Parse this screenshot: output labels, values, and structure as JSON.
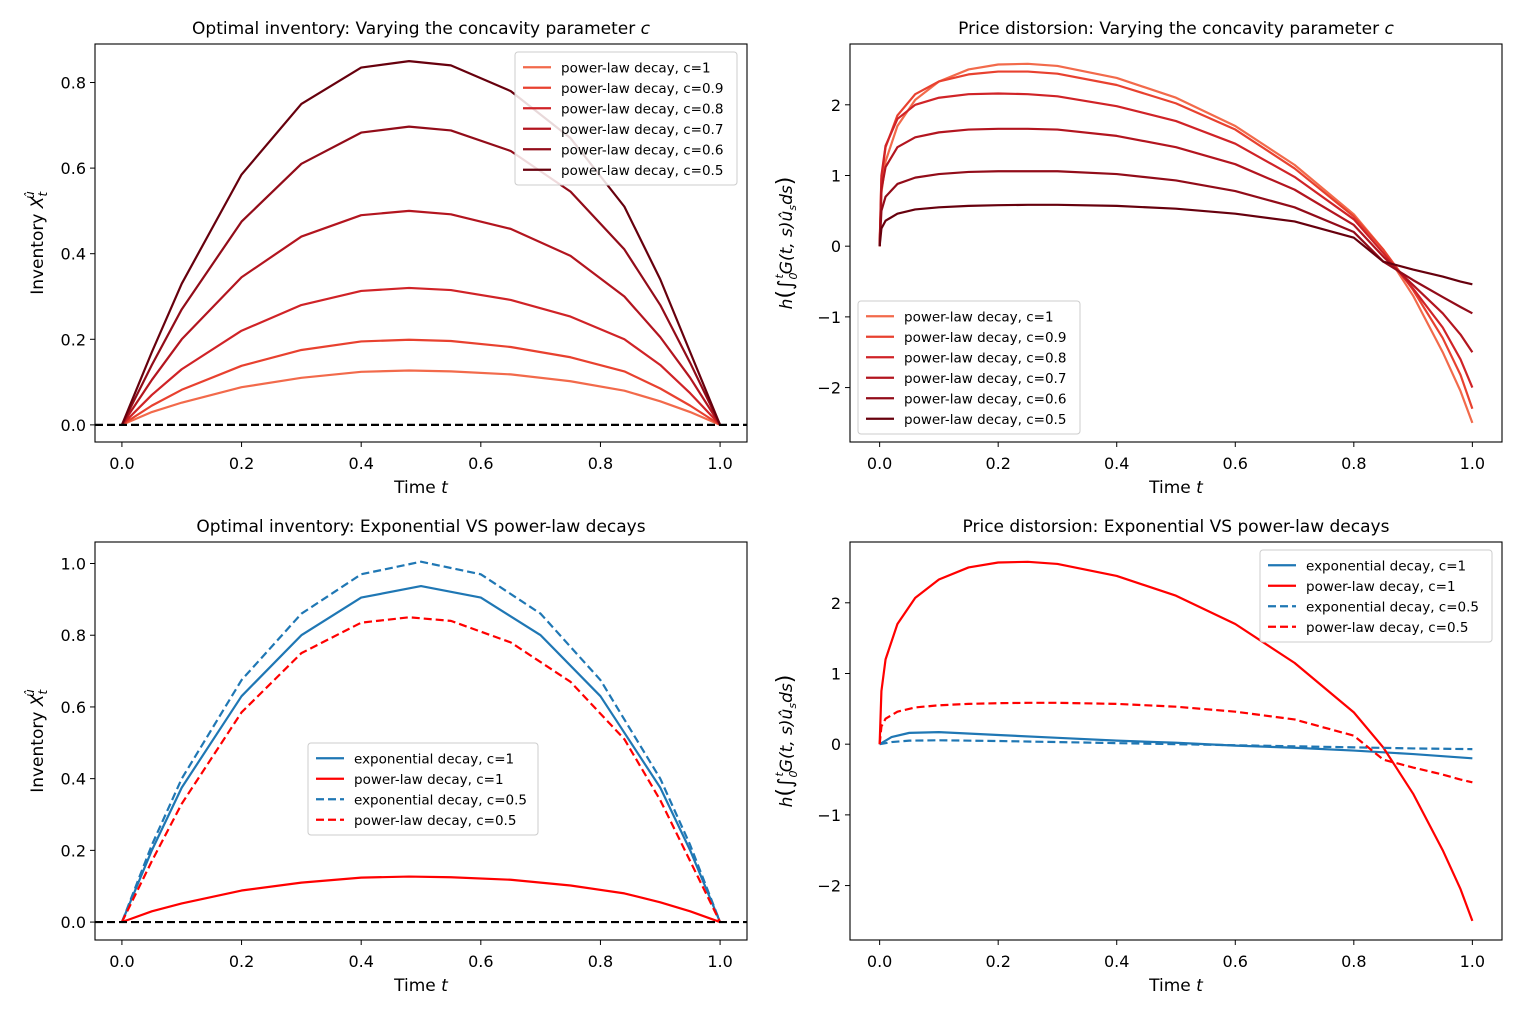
{
  "figure": {
    "background": "#ffffff"
  },
  "chart_data": [
    {
      "id": "tl",
      "type": "line",
      "title": "Optimal inventory: Varying the concavity parameter c",
      "title_text": "Optimal inventory: Varying the concavity parameter ",
      "title_var": "c",
      "xlabel": "Time t",
      "xlabel_text": "Time ",
      "xlabel_var": "t",
      "ylabel": "Inventory X_t^û",
      "ylabel_text": "Inventory X",
      "ylabel_sub": "t",
      "ylabel_sup": "û",
      "xlim": [
        -0.045,
        1.045
      ],
      "ylim": [
        -0.04,
        0.89
      ],
      "xticks": [
        0.0,
        0.2,
        0.4,
        0.6,
        0.8,
        1.0
      ],
      "xtick_labels": [
        "0.0",
        "0.2",
        "0.4",
        "0.6",
        "0.8",
        "1.0"
      ],
      "yticks": [
        0.0,
        0.2,
        0.4,
        0.6,
        0.8
      ],
      "ytick_labels": [
        "0.0",
        "0.2",
        "0.4",
        "0.6",
        "0.8"
      ],
      "legend_position": "top-right",
      "reference_line": {
        "y": 0,
        "color": "#000000",
        "style": "dashed"
      },
      "series": [
        {
          "name": "power-law decay, c=1",
          "color": "#f26a4b",
          "style": "solid",
          "x": [
            0,
            0.05,
            0.1,
            0.2,
            0.3,
            0.4,
            0.48,
            0.55,
            0.65,
            0.75,
            0.84,
            0.9,
            0.95,
            1.0
          ],
          "y": [
            0,
            0.03,
            0.052,
            0.088,
            0.11,
            0.124,
            0.127,
            0.125,
            0.118,
            0.102,
            0.08,
            0.055,
            0.03,
            0
          ]
        },
        {
          "name": "power-law decay, c=0.9",
          "color": "#e8412f",
          "style": "solid",
          "x": [
            0,
            0.05,
            0.1,
            0.2,
            0.3,
            0.4,
            0.48,
            0.55,
            0.65,
            0.75,
            0.84,
            0.9,
            0.95,
            1.0
          ],
          "y": [
            0,
            0.045,
            0.082,
            0.138,
            0.175,
            0.195,
            0.199,
            0.196,
            0.182,
            0.158,
            0.125,
            0.085,
            0.045,
            0
          ]
        },
        {
          "name": "power-law decay, c=0.8",
          "color": "#d02327",
          "style": "solid",
          "x": [
            0,
            0.05,
            0.1,
            0.2,
            0.3,
            0.4,
            0.48,
            0.55,
            0.65,
            0.75,
            0.84,
            0.9,
            0.95,
            1.0
          ],
          "y": [
            0,
            0.07,
            0.13,
            0.22,
            0.28,
            0.313,
            0.32,
            0.315,
            0.292,
            0.253,
            0.2,
            0.14,
            0.074,
            0
          ]
        },
        {
          "name": "power-law decay, c=0.7",
          "color": "#b3151f",
          "style": "solid",
          "x": [
            0,
            0.05,
            0.1,
            0.2,
            0.3,
            0.4,
            0.48,
            0.55,
            0.65,
            0.75,
            0.84,
            0.9,
            0.95,
            1.0
          ],
          "y": [
            0,
            0.105,
            0.2,
            0.345,
            0.44,
            0.49,
            0.5,
            0.492,
            0.458,
            0.395,
            0.3,
            0.205,
            0.11,
            0
          ]
        },
        {
          "name": "power-law decay, c=0.6",
          "color": "#920c19",
          "style": "solid",
          "x": [
            0,
            0.05,
            0.1,
            0.2,
            0.3,
            0.4,
            0.48,
            0.55,
            0.65,
            0.75,
            0.84,
            0.9,
            0.95,
            1.0
          ],
          "y": [
            0,
            0.14,
            0.27,
            0.475,
            0.61,
            0.683,
            0.697,
            0.688,
            0.64,
            0.545,
            0.41,
            0.28,
            0.145,
            0
          ]
        },
        {
          "name": "power-law decay, c=0.5",
          "color": "#67000d",
          "style": "solid",
          "x": [
            0,
            0.05,
            0.1,
            0.2,
            0.3,
            0.4,
            0.48,
            0.55,
            0.65,
            0.75,
            0.84,
            0.9,
            0.95,
            1.0
          ],
          "y": [
            0,
            0.17,
            0.33,
            0.585,
            0.75,
            0.835,
            0.85,
            0.84,
            0.78,
            0.67,
            0.51,
            0.34,
            0.17,
            0
          ]
        }
      ]
    },
    {
      "id": "tr",
      "type": "line",
      "title": "Price distorsion: Varying the concavity parameter c",
      "title_text": "Price distorsion: Varying the concavity parameter ",
      "title_var": "c",
      "xlabel": "Time t",
      "xlabel_text": "Time ",
      "xlabel_var": "t",
      "ylabel": "h(∫_0^t G(t,s) û_s ds)",
      "xlim": [
        -0.05,
        1.05
      ],
      "ylim": [
        -2.77,
        2.86
      ],
      "xticks": [
        0.0,
        0.2,
        0.4,
        0.6,
        0.8,
        1.0
      ],
      "xtick_labels": [
        "0.0",
        "0.2",
        "0.4",
        "0.6",
        "0.8",
        "1.0"
      ],
      "yticks": [
        -2,
        -1,
        0,
        1,
        2
      ],
      "ytick_labels": [
        "−2",
        "−1",
        "0",
        "1",
        "2"
      ],
      "legend_position": "bottom-left",
      "series": [
        {
          "name": "power-law decay, c=1",
          "color": "#f26a4b",
          "style": "solid",
          "x": [
            0,
            0.003,
            0.01,
            0.03,
            0.06,
            0.1,
            0.15,
            0.2,
            0.25,
            0.3,
            0.4,
            0.5,
            0.6,
            0.7,
            0.8,
            0.85,
            0.9,
            0.95,
            0.98,
            1.0
          ],
          "y": [
            0,
            0.75,
            1.2,
            1.7,
            2.07,
            2.33,
            2.5,
            2.57,
            2.58,
            2.55,
            2.38,
            2.1,
            1.7,
            1.15,
            0.45,
            -0.05,
            -0.7,
            -1.5,
            -2.05,
            -2.5
          ]
        },
        {
          "name": "power-law decay, c=0.9",
          "color": "#e8412f",
          "style": "solid",
          "x": [
            0,
            0.003,
            0.01,
            0.03,
            0.06,
            0.1,
            0.15,
            0.2,
            0.25,
            0.3,
            0.4,
            0.5,
            0.6,
            0.7,
            0.8,
            0.85,
            0.9,
            0.95,
            0.98,
            1.0
          ],
          "y": [
            0,
            0.95,
            1.4,
            1.85,
            2.15,
            2.33,
            2.43,
            2.47,
            2.47,
            2.44,
            2.28,
            2.02,
            1.65,
            1.1,
            0.42,
            -0.05,
            -0.62,
            -1.3,
            -1.82,
            -2.3
          ]
        },
        {
          "name": "power-law decay, c=0.8",
          "color": "#d02327",
          "style": "solid",
          "x": [
            0,
            0.003,
            0.01,
            0.03,
            0.06,
            0.1,
            0.15,
            0.2,
            0.25,
            0.3,
            0.4,
            0.5,
            0.6,
            0.7,
            0.8,
            0.85,
            0.9,
            0.95,
            0.98,
            1.0
          ],
          "y": [
            0,
            1.0,
            1.42,
            1.8,
            2.0,
            2.1,
            2.15,
            2.16,
            2.15,
            2.12,
            1.98,
            1.77,
            1.45,
            0.98,
            0.38,
            -0.1,
            -0.6,
            -1.15,
            -1.6,
            -2.0
          ]
        },
        {
          "name": "power-law decay, c=0.7",
          "color": "#b3151f",
          "style": "solid",
          "x": [
            0,
            0.003,
            0.01,
            0.03,
            0.06,
            0.1,
            0.15,
            0.2,
            0.25,
            0.3,
            0.4,
            0.5,
            0.6,
            0.7,
            0.8,
            0.85,
            0.9,
            0.95,
            0.98,
            1.0
          ],
          "y": [
            0,
            0.8,
            1.12,
            1.4,
            1.54,
            1.61,
            1.65,
            1.66,
            1.66,
            1.65,
            1.56,
            1.4,
            1.16,
            0.8,
            0.3,
            -0.15,
            -0.55,
            -0.95,
            -1.25,
            -1.5
          ]
        },
        {
          "name": "power-law decay, c=0.6",
          "color": "#920c19",
          "style": "solid",
          "x": [
            0,
            0.003,
            0.01,
            0.03,
            0.06,
            0.1,
            0.15,
            0.2,
            0.25,
            0.3,
            0.4,
            0.5,
            0.6,
            0.7,
            0.8,
            0.85,
            0.9,
            0.95,
            0.98,
            1.0
          ],
          "y": [
            0,
            0.5,
            0.7,
            0.88,
            0.97,
            1.02,
            1.05,
            1.06,
            1.06,
            1.06,
            1.02,
            0.93,
            0.78,
            0.55,
            0.2,
            -0.22,
            -0.48,
            -0.72,
            -0.86,
            -0.95
          ]
        },
        {
          "name": "power-law decay, c=0.5",
          "color": "#67000d",
          "style": "solid",
          "x": [
            0,
            0.003,
            0.01,
            0.03,
            0.06,
            0.1,
            0.15,
            0.2,
            0.25,
            0.3,
            0.4,
            0.5,
            0.6,
            0.7,
            0.8,
            0.85,
            0.9,
            0.95,
            0.98,
            1.0
          ],
          "y": [
            0,
            0.25,
            0.36,
            0.46,
            0.52,
            0.55,
            0.57,
            0.58,
            0.585,
            0.585,
            0.57,
            0.53,
            0.46,
            0.35,
            0.12,
            -0.22,
            -0.33,
            -0.43,
            -0.5,
            -0.54
          ]
        }
      ]
    },
    {
      "id": "bl",
      "type": "line",
      "title": "Optimal inventory: Exponential VS power-law decays",
      "title_text": "Optimal inventory: Exponential VS power-law decays",
      "title_var": "",
      "xlabel": "Time t",
      "xlabel_text": "Time ",
      "xlabel_var": "t",
      "ylabel": "Inventory X_t^û",
      "ylabel_text": "Inventory X",
      "ylabel_sub": "t",
      "ylabel_sup": "û",
      "xlim": [
        -0.045,
        1.045
      ],
      "ylim": [
        -0.05,
        1.06
      ],
      "xticks": [
        0.0,
        0.2,
        0.4,
        0.6,
        0.8,
        1.0
      ],
      "xtick_labels": [
        "0.0",
        "0.2",
        "0.4",
        "0.6",
        "0.8",
        "1.0"
      ],
      "yticks": [
        0.0,
        0.2,
        0.4,
        0.6,
        0.8,
        1.0
      ],
      "ytick_labels": [
        "0.0",
        "0.2",
        "0.4",
        "0.6",
        "0.8",
        "1.0"
      ],
      "legend_position": "center",
      "reference_line": {
        "y": 0,
        "color": "#000000",
        "style": "dashed"
      },
      "series": [
        {
          "name": "exponential decay, c=1",
          "color": "#1f77b4",
          "style": "solid",
          "x": [
            0,
            0.05,
            0.1,
            0.2,
            0.3,
            0.4,
            0.5,
            0.6,
            0.7,
            0.8,
            0.9,
            0.95,
            1.0
          ],
          "y": [
            0,
            0.2,
            0.375,
            0.63,
            0.8,
            0.905,
            0.937,
            0.905,
            0.8,
            0.63,
            0.375,
            0.2,
            0
          ]
        },
        {
          "name": "power-law decay, c=1",
          "color": "#ff0000",
          "style": "solid",
          "x": [
            0,
            0.05,
            0.1,
            0.2,
            0.3,
            0.4,
            0.48,
            0.55,
            0.65,
            0.75,
            0.84,
            0.9,
            0.95,
            1.0
          ],
          "y": [
            0,
            0.03,
            0.052,
            0.088,
            0.11,
            0.124,
            0.127,
            0.125,
            0.118,
            0.102,
            0.08,
            0.055,
            0.03,
            0
          ]
        },
        {
          "name": "exponential decay, c=0.5",
          "color": "#1f77b4",
          "style": "dashed",
          "x": [
            0,
            0.05,
            0.1,
            0.2,
            0.3,
            0.4,
            0.5,
            0.6,
            0.7,
            0.8,
            0.9,
            0.95,
            1.0
          ],
          "y": [
            0,
            0.215,
            0.4,
            0.675,
            0.86,
            0.97,
            1.005,
            0.97,
            0.86,
            0.675,
            0.4,
            0.215,
            0
          ]
        },
        {
          "name": "power-law decay, c=0.5",
          "color": "#ff0000",
          "style": "dashed",
          "x": [
            0,
            0.05,
            0.1,
            0.2,
            0.3,
            0.4,
            0.48,
            0.55,
            0.65,
            0.75,
            0.84,
            0.9,
            0.95,
            1.0
          ],
          "y": [
            0,
            0.17,
            0.33,
            0.585,
            0.75,
            0.835,
            0.85,
            0.84,
            0.78,
            0.67,
            0.51,
            0.34,
            0.17,
            0
          ]
        }
      ]
    },
    {
      "id": "br",
      "type": "line",
      "title": "Price distorsion: Exponential VS power-law decays",
      "title_text": "Price distorsion: Exponential VS power-law decays",
      "title_var": "",
      "xlabel": "Time t",
      "xlabel_text": "Time ",
      "xlabel_var": "t",
      "ylabel": "h(∫_0^t G(t,s) û_s ds)",
      "xlim": [
        -0.05,
        1.05
      ],
      "ylim": [
        -2.77,
        2.86
      ],
      "xticks": [
        0.0,
        0.2,
        0.4,
        0.6,
        0.8,
        1.0
      ],
      "xtick_labels": [
        "0.0",
        "0.2",
        "0.4",
        "0.6",
        "0.8",
        "1.0"
      ],
      "yticks": [
        -2,
        -1,
        0,
        1,
        2
      ],
      "ytick_labels": [
        "−2",
        "−1",
        "0",
        "1",
        "2"
      ],
      "legend_position": "top-right",
      "series": [
        {
          "name": "exponential decay, c=1",
          "color": "#1f77b4",
          "style": "solid",
          "x": [
            0,
            0.02,
            0.05,
            0.1,
            0.2,
            0.3,
            0.4,
            0.5,
            0.6,
            0.7,
            0.8,
            0.9,
            1.0
          ],
          "y": [
            0,
            0.1,
            0.16,
            0.17,
            0.13,
            0.09,
            0.05,
            0.02,
            -0.02,
            -0.05,
            -0.09,
            -0.14,
            -0.2
          ]
        },
        {
          "name": "power-law decay, c=1",
          "color": "#ff0000",
          "style": "solid",
          "x": [
            0,
            0.003,
            0.01,
            0.03,
            0.06,
            0.1,
            0.15,
            0.2,
            0.25,
            0.3,
            0.4,
            0.5,
            0.6,
            0.7,
            0.8,
            0.85,
            0.9,
            0.95,
            0.98,
            1.0
          ],
          "y": [
            0,
            0.75,
            1.2,
            1.7,
            2.07,
            2.33,
            2.5,
            2.57,
            2.58,
            2.55,
            2.38,
            2.1,
            1.7,
            1.15,
            0.45,
            -0.05,
            -0.7,
            -1.5,
            -2.05,
            -2.5
          ]
        },
        {
          "name": "exponential decay, c=0.5",
          "color": "#1f77b4",
          "style": "dashed",
          "x": [
            0,
            0.02,
            0.05,
            0.1,
            0.2,
            0.3,
            0.4,
            0.5,
            0.6,
            0.7,
            0.8,
            0.9,
            1.0
          ],
          "y": [
            0,
            0.03,
            0.05,
            0.055,
            0.045,
            0.03,
            0.015,
            0,
            -0.015,
            -0.03,
            -0.045,
            -0.06,
            -0.07
          ]
        },
        {
          "name": "power-law decay, c=0.5",
          "color": "#ff0000",
          "style": "dashed",
          "x": [
            0,
            0.003,
            0.01,
            0.03,
            0.06,
            0.1,
            0.15,
            0.2,
            0.25,
            0.3,
            0.4,
            0.5,
            0.6,
            0.7,
            0.8,
            0.85,
            0.9,
            0.95,
            0.98,
            1.0
          ],
          "y": [
            0,
            0.25,
            0.36,
            0.46,
            0.52,
            0.55,
            0.57,
            0.58,
            0.585,
            0.585,
            0.57,
            0.53,
            0.46,
            0.35,
            0.12,
            -0.22,
            -0.33,
            -0.43,
            -0.5,
            -0.54
          ]
        }
      ]
    }
  ]
}
